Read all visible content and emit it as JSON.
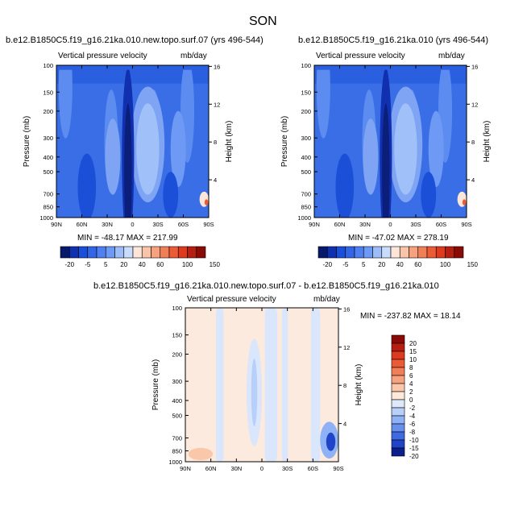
{
  "page": {
    "season": "SON"
  },
  "chart_data": [
    {
      "type": "contour",
      "id": "left",
      "title": "b.e12.B1850C5.f19_g16.21ka.010.new.topo.surf.07 (yrs 496-544)",
      "subtitle_left": "Vertical pressure velocity",
      "subtitle_right": "mb/day",
      "ylabel": "Pressure (mb)",
      "ylabel_right": "Height (km)",
      "x_ticks": [
        "90N",
        "60N",
        "30N",
        "0",
        "30S",
        "60S",
        "90S"
      ],
      "y_ticks": [
        "100",
        "150",
        "200",
        "300",
        "400",
        "500",
        "700",
        "850",
        "1000"
      ],
      "y_right_ticks": [
        "16",
        "12",
        "8",
        "4"
      ],
      "stats": "MIN = -48.17   MAX = 217.99",
      "colorbar_labels": [
        "-20",
        "-5",
        "5",
        "20",
        "40",
        "60",
        "100",
        "150"
      ]
    },
    {
      "type": "contour",
      "id": "right",
      "title": "b.e12.B1850C5.f19_g16.21ka.010 (yrs 496-544)",
      "subtitle_left": "Vertical pressure velocity",
      "subtitle_right": "mb/day",
      "ylabel": "Pressure (mb)",
      "ylabel_right": "Height (km)",
      "x_ticks": [
        "90N",
        "60N",
        "30N",
        "0",
        "30S",
        "60S",
        "90S"
      ],
      "y_ticks": [
        "100",
        "150",
        "200",
        "300",
        "400",
        "500",
        "700",
        "850",
        "1000"
      ],
      "y_right_ticks": [
        "16",
        "12",
        "8",
        "4"
      ],
      "stats": "MIN = -47.02   MAX = 278.19",
      "colorbar_labels": [
        "-20",
        "-5",
        "5",
        "20",
        "40",
        "60",
        "100",
        "150"
      ]
    },
    {
      "type": "contour",
      "id": "diff",
      "title": "b.e12.B1850C5.f19_g16.21ka.010.new.topo.surf.07 - b.e12.B1850C5.f19_g16.21ka.010",
      "subtitle_left": "Vertical pressure velocity",
      "subtitle_right": "mb/day",
      "ylabel": "Pressure (mb)",
      "ylabel_right": "Height (km)",
      "x_ticks": [
        "90N",
        "60N",
        "30N",
        "0",
        "30S",
        "60S",
        "90S"
      ],
      "y_ticks": [
        "100",
        "150",
        "200",
        "300",
        "400",
        "500",
        "700",
        "850",
        "1000"
      ],
      "y_right_ticks": [
        "16",
        "12",
        "8",
        "4"
      ],
      "stats": "MIN = -237.82   MAX =  18.14",
      "colorbar_labels": [
        "20",
        "15",
        "10",
        "8",
        "6",
        "4",
        "2",
        "0",
        "-2",
        "-4",
        "-6",
        "-8",
        "-10",
        "-15",
        "-20"
      ]
    }
  ],
  "colors": {
    "horiz_scale": [
      "#08196b",
      "#1030b0",
      "#1c4fd8",
      "#3366e6",
      "#4f7ff0",
      "#6e9af5",
      "#9dbdf8",
      "#c8dcfb",
      "#fbe6d9",
      "#f9c5a8",
      "#f6a27e",
      "#f27e56",
      "#ec5a36",
      "#dc3b1f",
      "#b81e10",
      "#8a0a05"
    ],
    "vert_scale": [
      "#8a0a05",
      "#b81e10",
      "#dc3b1f",
      "#ec5a36",
      "#f27e56",
      "#f6a27e",
      "#fac7aa",
      "#fde8da",
      "#dde9fb",
      "#b8d0f9",
      "#8fb1f5",
      "#6690ee",
      "#3e6ae2",
      "#1f44c8",
      "#0c1f8a"
    ],
    "field_bg": "#2a5fe0",
    "field_light": "#9fc0f8",
    "field_dark": "#0a1e7a",
    "diff_bg": "#fdeade",
    "diff_blue": "#d9e6fb"
  }
}
